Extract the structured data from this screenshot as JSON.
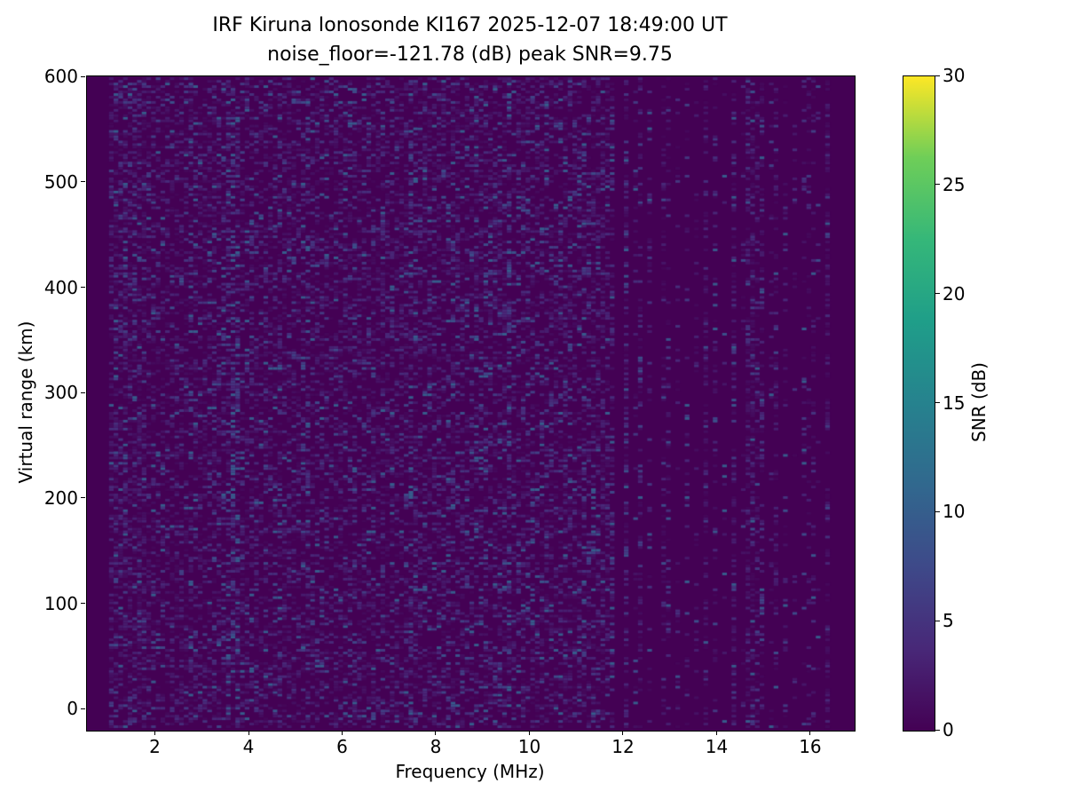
{
  "figure": {
    "title_line1": "IRF Kiruna Ionosonde KI167 2025-12-07 18:49:00  UT",
    "title_line2": "noise_floor=-121.78 (dB) peak SNR=9.75"
  },
  "chart_data": {
    "type": "heatmap",
    "title": "IRF Kiruna Ionosonde KI167 2025-12-07 18:49:00  UT",
    "subtitle": "noise_floor=-121.78 (dB) peak SNR=9.75",
    "station": "IRF Kiruna Ionosonde KI167",
    "timestamp_ut": "2025-12-07 18:49:00",
    "noise_floor_db": -121.78,
    "peak_snr_db": 9.75,
    "xlabel": "Frequency (MHz)",
    "ylabel": "Virtual range (km)",
    "xlim": [
      0.53,
      16.93
    ],
    "ylim": [
      -20,
      601
    ],
    "x_ticks": [
      2,
      4,
      6,
      8,
      10,
      12,
      14,
      16
    ],
    "y_ticks": [
      0,
      100,
      200,
      300,
      400,
      500,
      600
    ],
    "grid": false,
    "legend": false,
    "colorbar": {
      "label": "SNR (dB)",
      "ticks": [
        0,
        5,
        10,
        15,
        20,
        25,
        30
      ],
      "vmin": 0,
      "vmax": 30,
      "colormap": "viridis",
      "position": "right"
    },
    "colormap_stops": [
      [
        0.0,
        "#440154"
      ],
      [
        0.125,
        "#482878"
      ],
      [
        0.25,
        "#3e4989"
      ],
      [
        0.375,
        "#31688e"
      ],
      [
        0.5,
        "#26828e"
      ],
      [
        0.625,
        "#1f9e89"
      ],
      [
        0.75,
        "#35b779"
      ],
      [
        0.875,
        "#6ece58"
      ],
      [
        1.0,
        "#fde725"
      ]
    ],
    "pattern": {
      "description": "No ionospheric echo traces visible; plot shows low-level broadband receiver noise speckle (SNR mostly 0-7 dB, peak 9.75 dB) from 1.0 to ~11.7 MHz, and discrete narrowband RFI channel columns from ~11.7 to 16.5 MHz separated by empty (0 dB) background.",
      "seed": 16749,
      "freq_start_mhz": 1.0,
      "freq_end_mhz": 16.5,
      "broadband_end_mhz": 11.72,
      "freq_bin_mhz": 0.1,
      "range_start_km": -17.5,
      "range_end_km": 600,
      "range_bin_km": 2.5,
      "broadband_fill": 0.5,
      "noise_mean_db": 2.4,
      "peak_db": 9.75,
      "low_freq_boost_below_mhz": 1.8,
      "low_freq_boost": 1.25,
      "enhanced_columns_mhz": [
        3.55,
        3.7,
        7.45,
        9.55
      ],
      "enhanced_boost": 1.55,
      "rfi_channel_spacing_mhz": 0.2,
      "rfi_channel_jitter_mhz": 0.04,
      "rfi_fill_min": 0.08,
      "rfi_fill_max": 0.62,
      "background_db": 0
    }
  }
}
